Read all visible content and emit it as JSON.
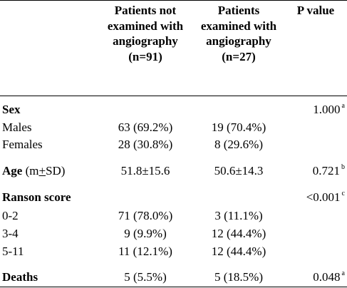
{
  "table": {
    "headers": {
      "col1": "Patients not examined with angiography (n=91)",
      "col2": "Patients examined with angiography (n=27)",
      "col3": "P value"
    },
    "sex": {
      "label": "Sex",
      "p": "1.000",
      "p_sup": "a",
      "males": {
        "label": "Males",
        "v1": "63 (69.2%)",
        "v2": "19 (70.4%)"
      },
      "females": {
        "label": "Females",
        "v1": "28 (30.8%)",
        "v2": "8 (29.6%)"
      }
    },
    "age": {
      "label_bold": "Age",
      "label_m": "(m",
      "label_pm": "+",
      "label_sd": "SD)",
      "v1": "51.8±15.6",
      "v2": "50.6±14.3",
      "p": "0.721",
      "p_sup": "b"
    },
    "ranson": {
      "label": "Ranson score",
      "p": "<0.001",
      "p_sup": "c",
      "r1": {
        "label": "0-2",
        "v1": "71 (78.0%)",
        "v2": "3 (11.1%)"
      },
      "r2": {
        "label": "3-4",
        "v1": "9 (9.9%)",
        "v2": "12 (44.4%)"
      },
      "r3": {
        "label": "5-11",
        "v1": "11 (12.1%)",
        "v2": "12 (44.4%)"
      }
    },
    "deaths": {
      "label": "Deaths",
      "v1": "5 (5.5%)",
      "v2": "5 (18.5%)",
      "p": "0.048",
      "p_sup": "a"
    }
  }
}
